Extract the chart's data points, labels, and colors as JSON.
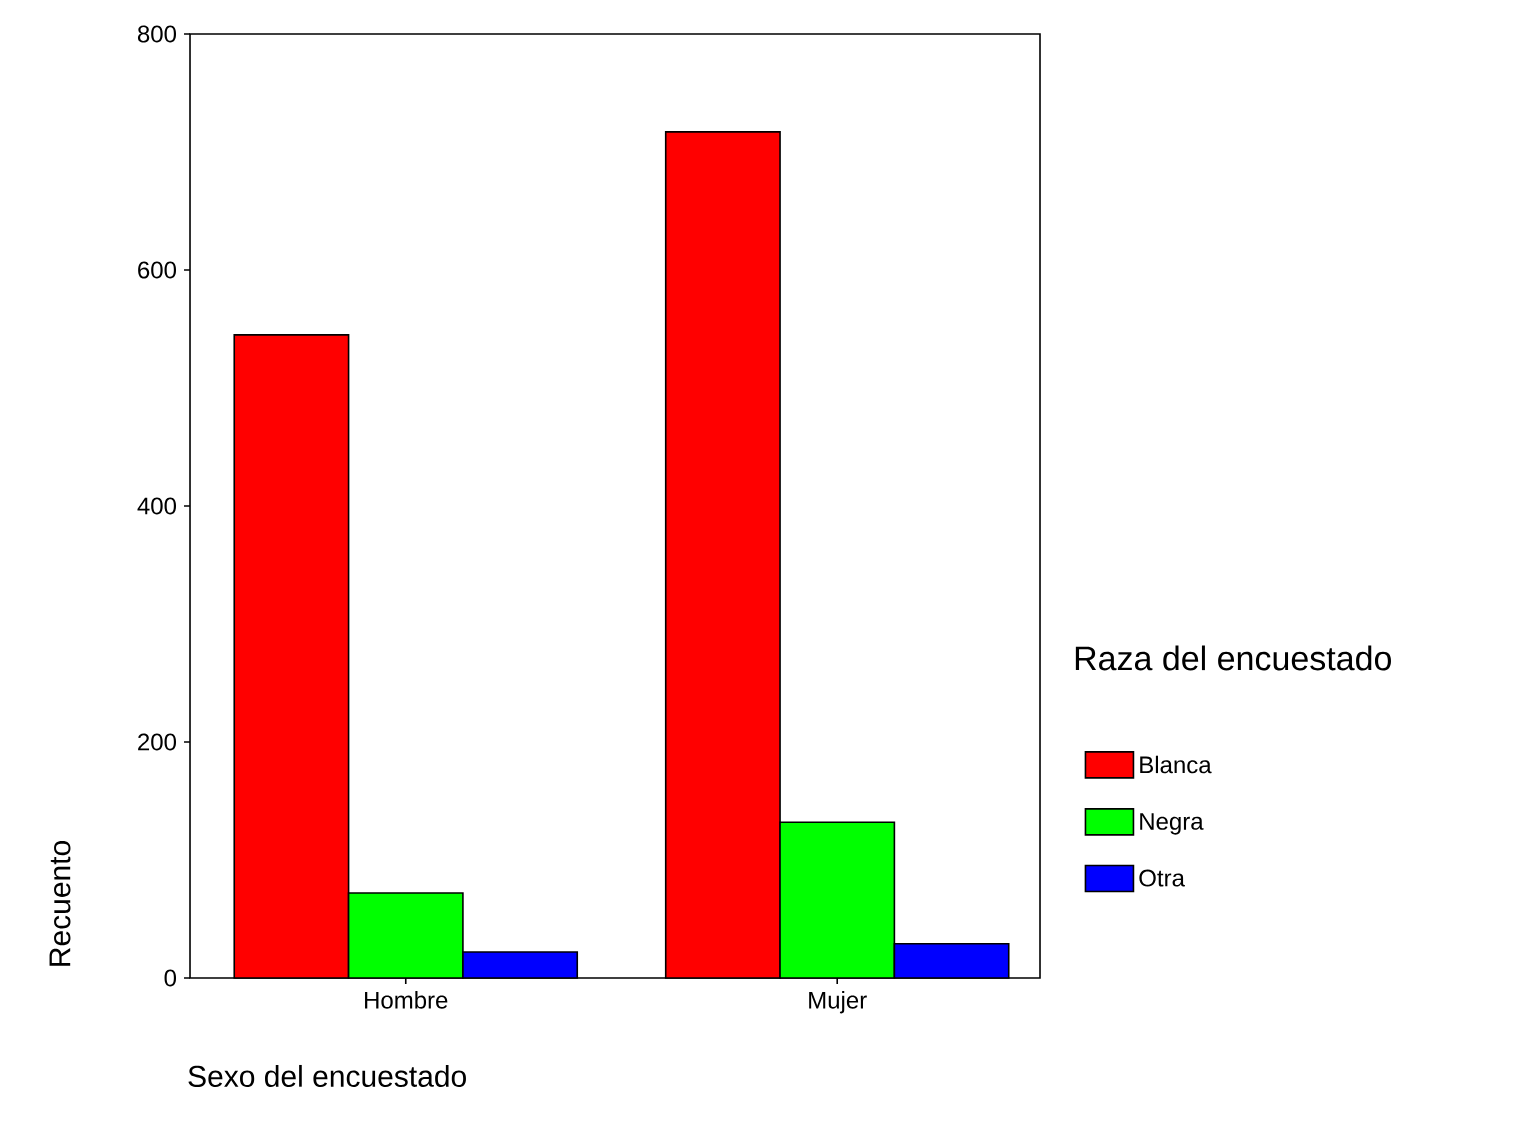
{
  "chart_data": {
    "type": "bar",
    "xlabel": "Sexo del encuestado",
    "ylabel": "Recuento",
    "legend_title": "Raza del encuestado",
    "categories": [
      "Hombre",
      "Mujer"
    ],
    "series": [
      {
        "name": "Blanca",
        "color": "#ff0000",
        "values": [
          545,
          717
        ]
      },
      {
        "name": "Negra",
        "color": "#00ff00",
        "values": [
          72,
          132
        ]
      },
      {
        "name": "Otra",
        "color": "#0000ff",
        "values": [
          22,
          29
        ]
      }
    ],
    "ylim": [
      0,
      800
    ],
    "yticks": [
      0,
      200,
      400,
      600,
      800
    ],
    "grid": false,
    "legend": "right"
  }
}
